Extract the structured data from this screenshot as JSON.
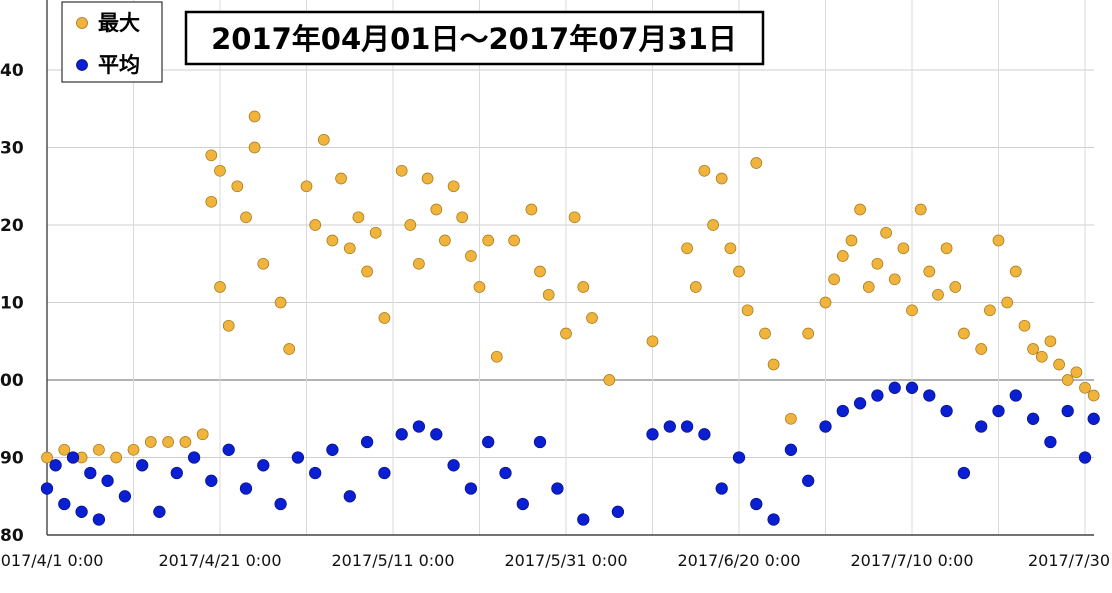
{
  "chart_data": {
    "type": "scatter",
    "title": "2017年04月01日～2017年07月31日",
    "xlabel": "",
    "ylabel": "",
    "x_tick_labels": [
      "2017/4/1 0:00",
      "2017/4/21 0:00",
      "2017/5/11 0:00",
      "2017/5/31 0:00",
      "2017/6/20 0:00",
      "2017/7/10 0:00",
      "2017/7/30"
    ],
    "y_tick_labels": [
      "80",
      "90",
      "00",
      "10",
      "20",
      "30",
      "40"
    ],
    "xlim": [
      "2017-04-01",
      "2017-07-31"
    ],
    "ylim": [
      80,
      140
    ],
    "grid": true,
    "legend_position": "top-left",
    "series": [
      {
        "name": "最大",
        "color": "#F0B43C",
        "points": [
          [
            "2017-04-01",
            90
          ],
          [
            "2017-04-03",
            91
          ],
          [
            "2017-04-05",
            90
          ],
          [
            "2017-04-07",
            91
          ],
          [
            "2017-04-09",
            90
          ],
          [
            "2017-04-11",
            91
          ],
          [
            "2017-04-13",
            92
          ],
          [
            "2017-04-15",
            92
          ],
          [
            "2017-04-17",
            92
          ],
          [
            "2017-04-19",
            93
          ],
          [
            "2017-04-20",
            129
          ],
          [
            "2017-04-20",
            123
          ],
          [
            "2017-04-21",
            127
          ],
          [
            "2017-04-21",
            112
          ],
          [
            "2017-04-22",
            107
          ],
          [
            "2017-04-23",
            125
          ],
          [
            "2017-04-24",
            121
          ],
          [
            "2017-04-25",
            134
          ],
          [
            "2017-04-25",
            130
          ],
          [
            "2017-04-26",
            115
          ],
          [
            "2017-04-28",
            110
          ],
          [
            "2017-04-29",
            104
          ],
          [
            "2017-05-01",
            125
          ],
          [
            "2017-05-02",
            120
          ],
          [
            "2017-05-03",
            131
          ],
          [
            "2017-05-04",
            118
          ],
          [
            "2017-05-05",
            126
          ],
          [
            "2017-05-06",
            117
          ],
          [
            "2017-05-07",
            121
          ],
          [
            "2017-05-08",
            114
          ],
          [
            "2017-05-09",
            119
          ],
          [
            "2017-05-10",
            108
          ],
          [
            "2017-05-12",
            127
          ],
          [
            "2017-05-13",
            120
          ],
          [
            "2017-05-14",
            115
          ],
          [
            "2017-05-15",
            126
          ],
          [
            "2017-05-16",
            122
          ],
          [
            "2017-05-17",
            118
          ],
          [
            "2017-05-18",
            125
          ],
          [
            "2017-05-19",
            121
          ],
          [
            "2017-05-20",
            116
          ],
          [
            "2017-05-21",
            112
          ],
          [
            "2017-05-22",
            118
          ],
          [
            "2017-05-23",
            103
          ],
          [
            "2017-05-25",
            118
          ],
          [
            "2017-05-27",
            122
          ],
          [
            "2017-05-28",
            114
          ],
          [
            "2017-05-29",
            111
          ],
          [
            "2017-05-31",
            106
          ],
          [
            "2017-06-01",
            121
          ],
          [
            "2017-06-02",
            112
          ],
          [
            "2017-06-03",
            108
          ],
          [
            "2017-06-05",
            100
          ],
          [
            "2017-06-10",
            105
          ],
          [
            "2017-06-14",
            117
          ],
          [
            "2017-06-15",
            112
          ],
          [
            "2017-06-16",
            127
          ],
          [
            "2017-06-17",
            120
          ],
          [
            "2017-06-18",
            126
          ],
          [
            "2017-06-19",
            117
          ],
          [
            "2017-06-20",
            114
          ],
          [
            "2017-06-21",
            109
          ],
          [
            "2017-06-22",
            128
          ],
          [
            "2017-06-23",
            106
          ],
          [
            "2017-06-24",
            102
          ],
          [
            "2017-06-26",
            95
          ],
          [
            "2017-06-28",
            106
          ],
          [
            "2017-06-30",
            110
          ],
          [
            "2017-07-01",
            113
          ],
          [
            "2017-07-02",
            116
          ],
          [
            "2017-07-03",
            118
          ],
          [
            "2017-07-04",
            122
          ],
          [
            "2017-07-05",
            112
          ],
          [
            "2017-07-06",
            115
          ],
          [
            "2017-07-07",
            119
          ],
          [
            "2017-07-08",
            113
          ],
          [
            "2017-07-09",
            117
          ],
          [
            "2017-07-10",
            109
          ],
          [
            "2017-07-11",
            122
          ],
          [
            "2017-07-12",
            114
          ],
          [
            "2017-07-13",
            111
          ],
          [
            "2017-07-14",
            117
          ],
          [
            "2017-07-15",
            112
          ],
          [
            "2017-07-16",
            106
          ],
          [
            "2017-07-18",
            104
          ],
          [
            "2017-07-19",
            109
          ],
          [
            "2017-07-20",
            118
          ],
          [
            "2017-07-21",
            110
          ],
          [
            "2017-07-22",
            114
          ],
          [
            "2017-07-23",
            107
          ],
          [
            "2017-07-24",
            104
          ],
          [
            "2017-07-25",
            103
          ],
          [
            "2017-07-26",
            105
          ],
          [
            "2017-07-27",
            102
          ],
          [
            "2017-07-28",
            100
          ],
          [
            "2017-07-29",
            101
          ],
          [
            "2017-07-30",
            99
          ],
          [
            "2017-07-31",
            98
          ]
        ]
      },
      {
        "name": "平均",
        "color": "#0A1ED2",
        "points": [
          [
            "2017-04-01",
            86
          ],
          [
            "2017-04-02",
            89
          ],
          [
            "2017-04-03",
            84
          ],
          [
            "2017-04-04",
            90
          ],
          [
            "2017-04-05",
            83
          ],
          [
            "2017-04-06",
            88
          ],
          [
            "2017-04-07",
            82
          ],
          [
            "2017-04-08",
            87
          ],
          [
            "2017-04-10",
            85
          ],
          [
            "2017-04-12",
            89
          ],
          [
            "2017-04-14",
            83
          ],
          [
            "2017-04-16",
            88
          ],
          [
            "2017-04-18",
            90
          ],
          [
            "2017-04-20",
            87
          ],
          [
            "2017-04-22",
            91
          ],
          [
            "2017-04-24",
            86
          ],
          [
            "2017-04-26",
            89
          ],
          [
            "2017-04-28",
            84
          ],
          [
            "2017-04-30",
            90
          ],
          [
            "2017-05-02",
            88
          ],
          [
            "2017-05-04",
            91
          ],
          [
            "2017-05-06",
            85
          ],
          [
            "2017-05-08",
            92
          ],
          [
            "2017-05-10",
            88
          ],
          [
            "2017-05-12",
            93
          ],
          [
            "2017-05-14",
            94
          ],
          [
            "2017-05-16",
            93
          ],
          [
            "2017-05-18",
            89
          ],
          [
            "2017-05-20",
            86
          ],
          [
            "2017-05-22",
            92
          ],
          [
            "2017-05-24",
            88
          ],
          [
            "2017-05-26",
            84
          ],
          [
            "2017-05-28",
            92
          ],
          [
            "2017-05-30",
            86
          ],
          [
            "2017-06-02",
            82
          ],
          [
            "2017-06-06",
            83
          ],
          [
            "2017-06-10",
            93
          ],
          [
            "2017-06-12",
            94
          ],
          [
            "2017-06-14",
            94
          ],
          [
            "2017-06-16",
            93
          ],
          [
            "2017-06-18",
            86
          ],
          [
            "2017-06-20",
            90
          ],
          [
            "2017-06-22",
            84
          ],
          [
            "2017-06-24",
            82
          ],
          [
            "2017-06-26",
            91
          ],
          [
            "2017-06-28",
            87
          ],
          [
            "2017-06-30",
            94
          ],
          [
            "2017-07-02",
            96
          ],
          [
            "2017-07-04",
            97
          ],
          [
            "2017-07-06",
            98
          ],
          [
            "2017-07-08",
            99
          ],
          [
            "2017-07-10",
            99
          ],
          [
            "2017-07-12",
            98
          ],
          [
            "2017-07-14",
            96
          ],
          [
            "2017-07-16",
            88
          ],
          [
            "2017-07-18",
            94
          ],
          [
            "2017-07-20",
            96
          ],
          [
            "2017-07-22",
            98
          ],
          [
            "2017-07-24",
            95
          ],
          [
            "2017-07-26",
            92
          ],
          [
            "2017-07-28",
            96
          ],
          [
            "2017-07-30",
            90
          ],
          [
            "2017-07-31",
            95
          ]
        ]
      }
    ]
  }
}
